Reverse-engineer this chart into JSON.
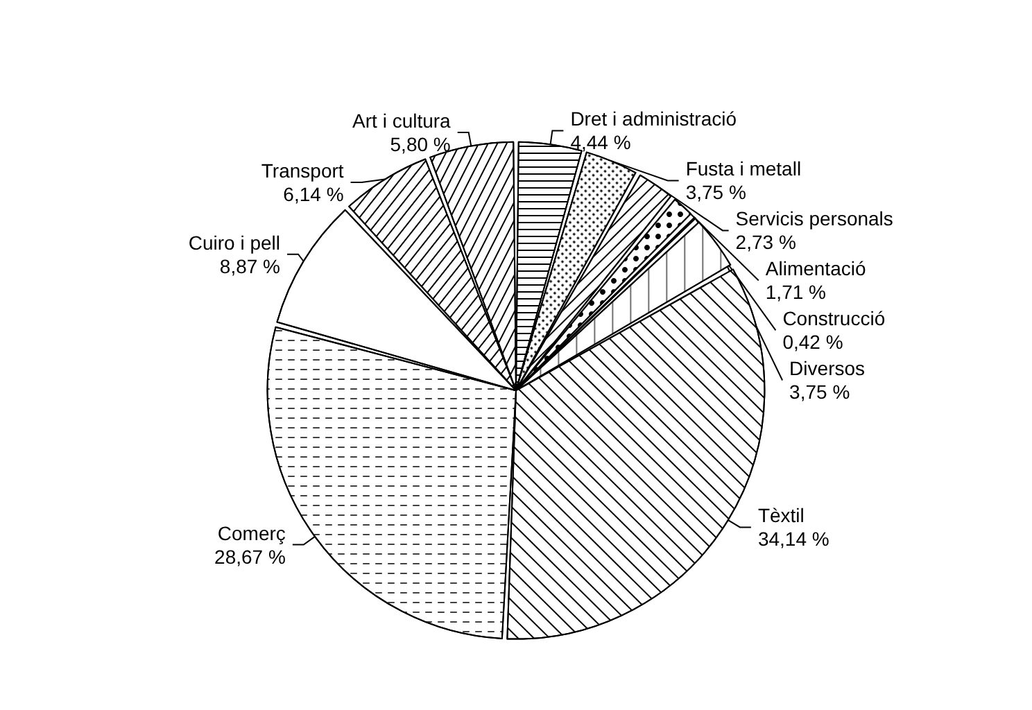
{
  "chart_data": {
    "type": "pie",
    "categories": [
      "Dret i administració",
      "Fusta i metall",
      "Servicis personals",
      "Alimentació",
      "Construcció",
      "Diversos",
      "Tèxtil",
      "Comerç",
      "Cuiro i pell",
      "Transport",
      "Art i cultura"
    ],
    "values": [
      4.44,
      3.75,
      2.73,
      1.71,
      0.42,
      3.75,
      34.14,
      28.67,
      8.87,
      6.14,
      5.8
    ],
    "value_labels": [
      "4,44 %",
      "3,75 %",
      "2,73 %",
      "1,71 %",
      "0,42 %",
      "3,75 %",
      "34,14 %",
      "28,67 %",
      "8,87 %",
      "6,14 %",
      "5,80 %"
    ],
    "colors": [
      "#ffffff",
      "#ffffff",
      "#ffffff",
      "#ffffff",
      "#000000",
      "#ffffff",
      "#ffffff",
      "#ffffff",
      "#ffffff",
      "#ffffff",
      "#ffffff"
    ],
    "legend": false
  }
}
